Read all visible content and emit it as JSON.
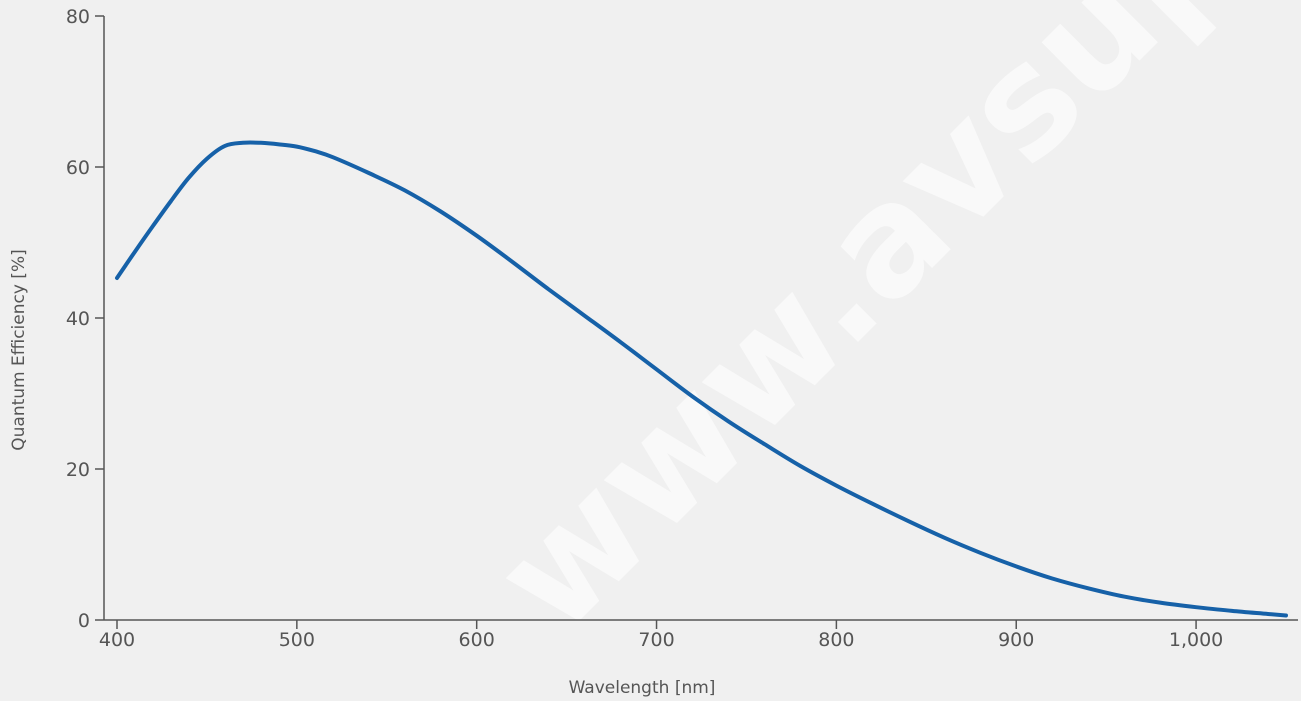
{
  "watermark": "www.avsupply.com",
  "chart_data": {
    "type": "line",
    "title": "",
    "xlabel": "Wavelength [nm]",
    "ylabel": "Quantum Efficiency [%]",
    "xlim": [
      400,
      1050
    ],
    "ylim": [
      0,
      80
    ],
    "x_ticks": [
      400,
      500,
      600,
      700,
      800,
      900,
      1000
    ],
    "x_tick_labels": [
      "400",
      "500",
      "600",
      "700",
      "800",
      "900",
      "1,000"
    ],
    "y_ticks": [
      0,
      20,
      40,
      60,
      80
    ],
    "y_tick_labels": [
      "0",
      "20",
      "40",
      "60",
      "80"
    ],
    "grid": false,
    "line_color": "#1661a8",
    "series": [
      {
        "x": [
          400,
          410,
          420,
          430,
          440,
          450,
          460,
          470,
          480,
          490,
          500,
          510,
          520,
          540,
          560,
          580,
          600,
          620,
          640,
          660,
          680,
          700,
          720,
          740,
          760,
          780,
          800,
          820,
          840,
          860,
          880,
          900,
          920,
          940,
          960,
          980,
          1000,
          1020,
          1040,
          1050
        ],
        "y": [
          45.3,
          48.8,
          52.2,
          55.5,
          58.6,
          61.1,
          62.8,
          63.2,
          63.2,
          63.0,
          62.7,
          62.1,
          61.3,
          59.2,
          56.9,
          54.1,
          50.9,
          47.4,
          43.8,
          40.3,
          36.8,
          33.2,
          29.6,
          26.3,
          23.3,
          20.4,
          17.8,
          15.4,
          13.1,
          10.9,
          8.9,
          7.1,
          5.5,
          4.2,
          3.1,
          2.3,
          1.7,
          1.2,
          0.8,
          0.6
        ]
      }
    ]
  }
}
